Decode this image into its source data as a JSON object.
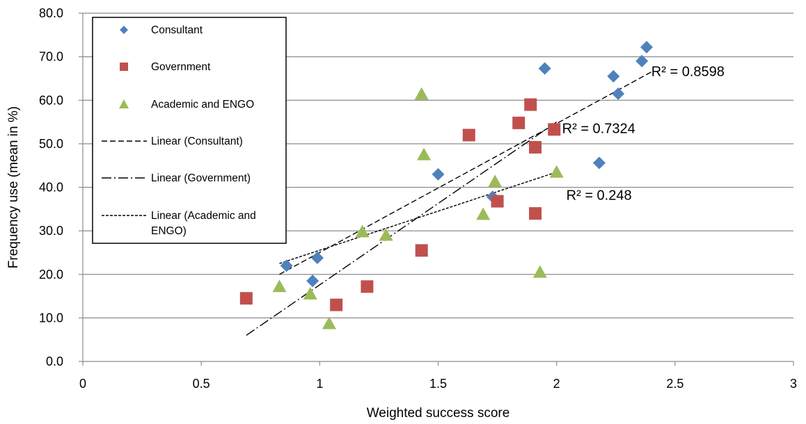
{
  "chart_data": {
    "type": "scatter",
    "xlabel": "Weighted success score",
    "ylabel": "Frequency use (mean in %)",
    "xlim": [
      0,
      3
    ],
    "ylim": [
      0,
      80
    ],
    "x_ticks": [
      "0",
      "0.5",
      "1",
      "1.5",
      "2",
      "2.5",
      "3"
    ],
    "y_ticks": [
      "0.0",
      "10.0",
      "20.0",
      "30.0",
      "40.0",
      "50.0",
      "60.0",
      "70.0",
      "80.0"
    ],
    "grid": "horizontal",
    "legend_position": "top-left",
    "series": [
      {
        "name": "Consultant",
        "marker": "diamond",
        "color": "#4F81BD",
        "points": [
          [
            0.86,
            22.0
          ],
          [
            0.97,
            18.5
          ],
          [
            0.99,
            23.8
          ],
          [
            1.5,
            43.0
          ],
          [
            1.73,
            37.8
          ],
          [
            1.95,
            67.3
          ],
          [
            2.18,
            45.6
          ],
          [
            2.24,
            65.5
          ],
          [
            2.26,
            61.5
          ],
          [
            2.36,
            69.0
          ],
          [
            2.38,
            72.2
          ]
        ]
      },
      {
        "name": "Government",
        "marker": "square",
        "color": "#C0504D",
        "points": [
          [
            0.69,
            14.5
          ],
          [
            1.07,
            13.0
          ],
          [
            1.2,
            17.2
          ],
          [
            1.43,
            25.5
          ],
          [
            1.63,
            52.0
          ],
          [
            1.75,
            36.8
          ],
          [
            1.84,
            54.8
          ],
          [
            1.89,
            59.0
          ],
          [
            1.91,
            49.2
          ],
          [
            1.91,
            34.0
          ],
          [
            1.99,
            53.3
          ]
        ]
      },
      {
        "name": "Academic and ENGO",
        "marker": "triangle",
        "color": "#9BBB59",
        "points": [
          [
            0.83,
            17.2
          ],
          [
            0.96,
            15.5
          ],
          [
            1.04,
            8.7
          ],
          [
            1.18,
            29.8
          ],
          [
            1.28,
            29.0
          ],
          [
            1.43,
            61.4
          ],
          [
            1.44,
            47.5
          ],
          [
            1.69,
            33.8
          ],
          [
            1.74,
            41.3
          ],
          [
            1.93,
            20.5
          ],
          [
            2.0,
            43.5
          ]
        ]
      }
    ],
    "trendlines": [
      {
        "name": "Linear (Consultant)",
        "style": "dashed",
        "from": [
          0.83,
          20.0
        ],
        "to": [
          2.4,
          66.5
        ],
        "r2": "R² = 0.8598"
      },
      {
        "name": "Linear (Government)",
        "style": "dash-dot",
        "from": [
          0.69,
          6.0
        ],
        "to": [
          2.0,
          55.0
        ],
        "r2": "R² = 0.7324"
      },
      {
        "name": "Linear (Academic and ENGO)",
        "style": "dotted",
        "from": [
          0.83,
          22.5
        ],
        "to": [
          2.0,
          43.5
        ],
        "r2": "R² = 0.248"
      }
    ],
    "legend_entries": [
      "Consultant",
      "Government",
      "Academic and ENGO",
      "Linear (Consultant)",
      "Linear (Government)",
      "Linear (Academic and ENGO)"
    ]
  }
}
